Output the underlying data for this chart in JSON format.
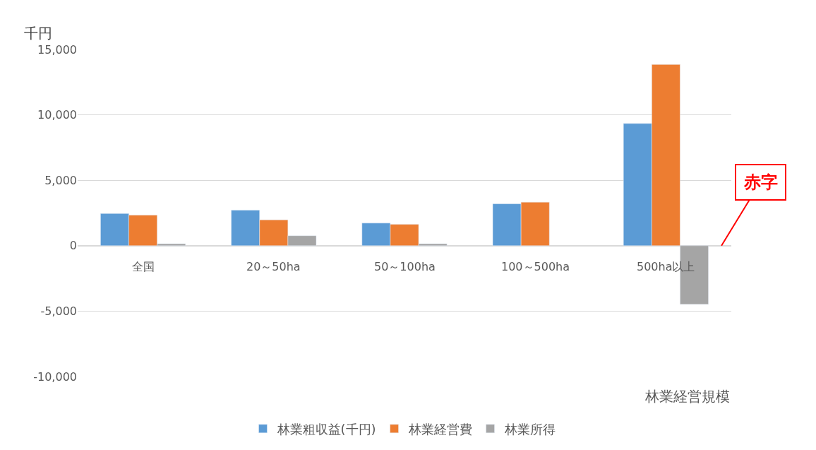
{
  "chart_data": {
    "type": "bar",
    "ylabel": "千円",
    "xlabel": "林業経営規模",
    "categories": [
      "全国",
      "20～50ha",
      "50～100ha",
      "100～500ha",
      "500ha以上"
    ],
    "series": [
      {
        "name": "林業粗収益(千円)",
        "color": "#5b9bd5",
        "values": [
          2460,
          2720,
          1730,
          3200,
          9340
        ]
      },
      {
        "name": "林業経営費",
        "color": "#ed7d31",
        "values": [
          2340,
          1980,
          1630,
          3330,
          13850
        ]
      },
      {
        "name": "林業所得",
        "color": "#a5a5a5",
        "values": [
          150,
          760,
          150,
          null,
          -4480
        ]
      }
    ],
    "annotations": [
      "赤字"
    ],
    "ylim": [
      -10000,
      15000
    ],
    "yticks": [
      {
        "value": -10000,
        "label": "-10,000"
      },
      {
        "value": -5000,
        "label": "-5,000"
      },
      0,
      {
        "value": 5000,
        "label": "5,000"
      },
      {
        "value": 10000,
        "label": "10,000"
      },
      {
        "value": 15000,
        "label": "15,000"
      }
    ],
    "grid": "y",
    "legend": "bottom"
  }
}
